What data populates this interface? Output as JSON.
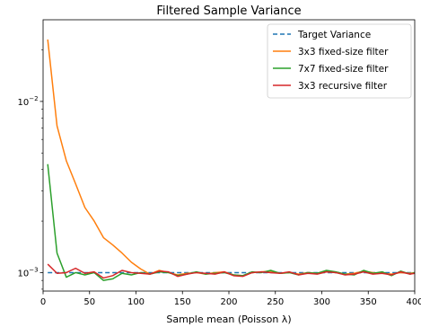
{
  "chart_data": {
    "type": "line",
    "title": "Filtered Sample Variance",
    "xlabel": "Sample mean (Poisson λ)",
    "ylabel": "",
    "xlim": [
      0,
      400
    ],
    "ylim": [
      0.00078,
      0.03
    ],
    "yscale": "log",
    "grid": false,
    "legend_position": "top-right",
    "xticks": [
      {
        "value": 0,
        "label": "0"
      },
      {
        "value": 50,
        "label": "50"
      },
      {
        "value": 100,
        "label": "100"
      },
      {
        "value": 150,
        "label": "150"
      },
      {
        "value": 200,
        "label": "200"
      },
      {
        "value": 250,
        "label": "250"
      },
      {
        "value": 300,
        "label": "300"
      },
      {
        "value": 350,
        "label": "350"
      },
      {
        "value": 400,
        "label": "400"
      }
    ],
    "yticks": [
      {
        "value": 0.001,
        "label_base": "10",
        "label_exp": "−3"
      },
      {
        "value": 0.01,
        "label_base": "10",
        "label_exp": "−2"
      }
    ],
    "x": [
      5,
      15,
      25,
      35,
      45,
      55,
      65,
      75,
      85,
      95,
      105,
      115,
      125,
      135,
      145,
      155,
      165,
      175,
      185,
      195,
      205,
      215,
      225,
      235,
      245,
      255,
      265,
      275,
      285,
      295,
      305,
      315,
      325,
      335,
      345,
      355,
      365,
      375,
      385,
      395,
      400
    ],
    "series": [
      {
        "name": "Target Variance",
        "color": "#1f77b4",
        "style": "dashed",
        "values": [
          0.001,
          0.001,
          0.001,
          0.001,
          0.001,
          0.001,
          0.001,
          0.001,
          0.001,
          0.001,
          0.001,
          0.001,
          0.001,
          0.001,
          0.001,
          0.001,
          0.001,
          0.001,
          0.001,
          0.001,
          0.001,
          0.001,
          0.001,
          0.001,
          0.001,
          0.001,
          0.001,
          0.001,
          0.001,
          0.001,
          0.001,
          0.001,
          0.001,
          0.001,
          0.001,
          0.001,
          0.001,
          0.001,
          0.001,
          0.001,
          0.001
        ]
      },
      {
        "name": "3x3 fixed-size filter",
        "color": "#ff7f0e",
        "style": "solid",
        "values": [
          0.023,
          0.0072,
          0.0045,
          0.0033,
          0.0024,
          0.002,
          0.0016,
          0.00145,
          0.0013,
          0.00115,
          0.00105,
          0.00098,
          0.00103,
          0.001,
          0.00097,
          0.00099,
          0.001,
          0.00098,
          0.001,
          0.00101,
          0.00097,
          0.00096,
          0.001,
          0.00101,
          0.00102,
          0.00099,
          0.001,
          0.00098,
          0.001,
          0.00099,
          0.00102,
          0.001,
          0.00098,
          0.00099,
          0.00102,
          0.001,
          0.00099,
          0.00098,
          0.001,
          0.00099,
          0.001
        ]
      },
      {
        "name": "7x7 fixed-size filter",
        "color": "#2ca02c",
        "style": "solid",
        "values": [
          0.0043,
          0.0013,
          0.00094,
          0.001,
          0.00097,
          0.001,
          0.0009,
          0.00092,
          0.00099,
          0.00097,
          0.001,
          0.00098,
          0.00101,
          0.001,
          0.00096,
          0.00098,
          0.00101,
          0.00098,
          0.00099,
          0.001,
          0.00097,
          0.00096,
          0.00101,
          0.001,
          0.00103,
          0.00099,
          0.001,
          0.00097,
          0.001,
          0.00099,
          0.00103,
          0.00101,
          0.00098,
          0.00097,
          0.00103,
          0.00099,
          0.00101,
          0.00096,
          0.00102,
          0.00098,
          0.001
        ]
      },
      {
        "name": "3x3 recursive filter",
        "color": "#d62728",
        "style": "solid",
        "values": [
          0.00112,
          0.00099,
          0.001,
          0.00106,
          0.00099,
          0.00101,
          0.00093,
          0.00096,
          0.00103,
          0.001,
          0.00099,
          0.00098,
          0.00102,
          0.00101,
          0.00095,
          0.00098,
          0.001,
          0.00099,
          0.00098,
          0.00101,
          0.00096,
          0.00095,
          0.001,
          0.00101,
          0.001,
          0.00099,
          0.00101,
          0.00097,
          0.00099,
          0.00098,
          0.00101,
          0.001,
          0.00097,
          0.00098,
          0.00101,
          0.00098,
          0.00099,
          0.00097,
          0.00101,
          0.00098,
          0.00099
        ]
      }
    ]
  }
}
